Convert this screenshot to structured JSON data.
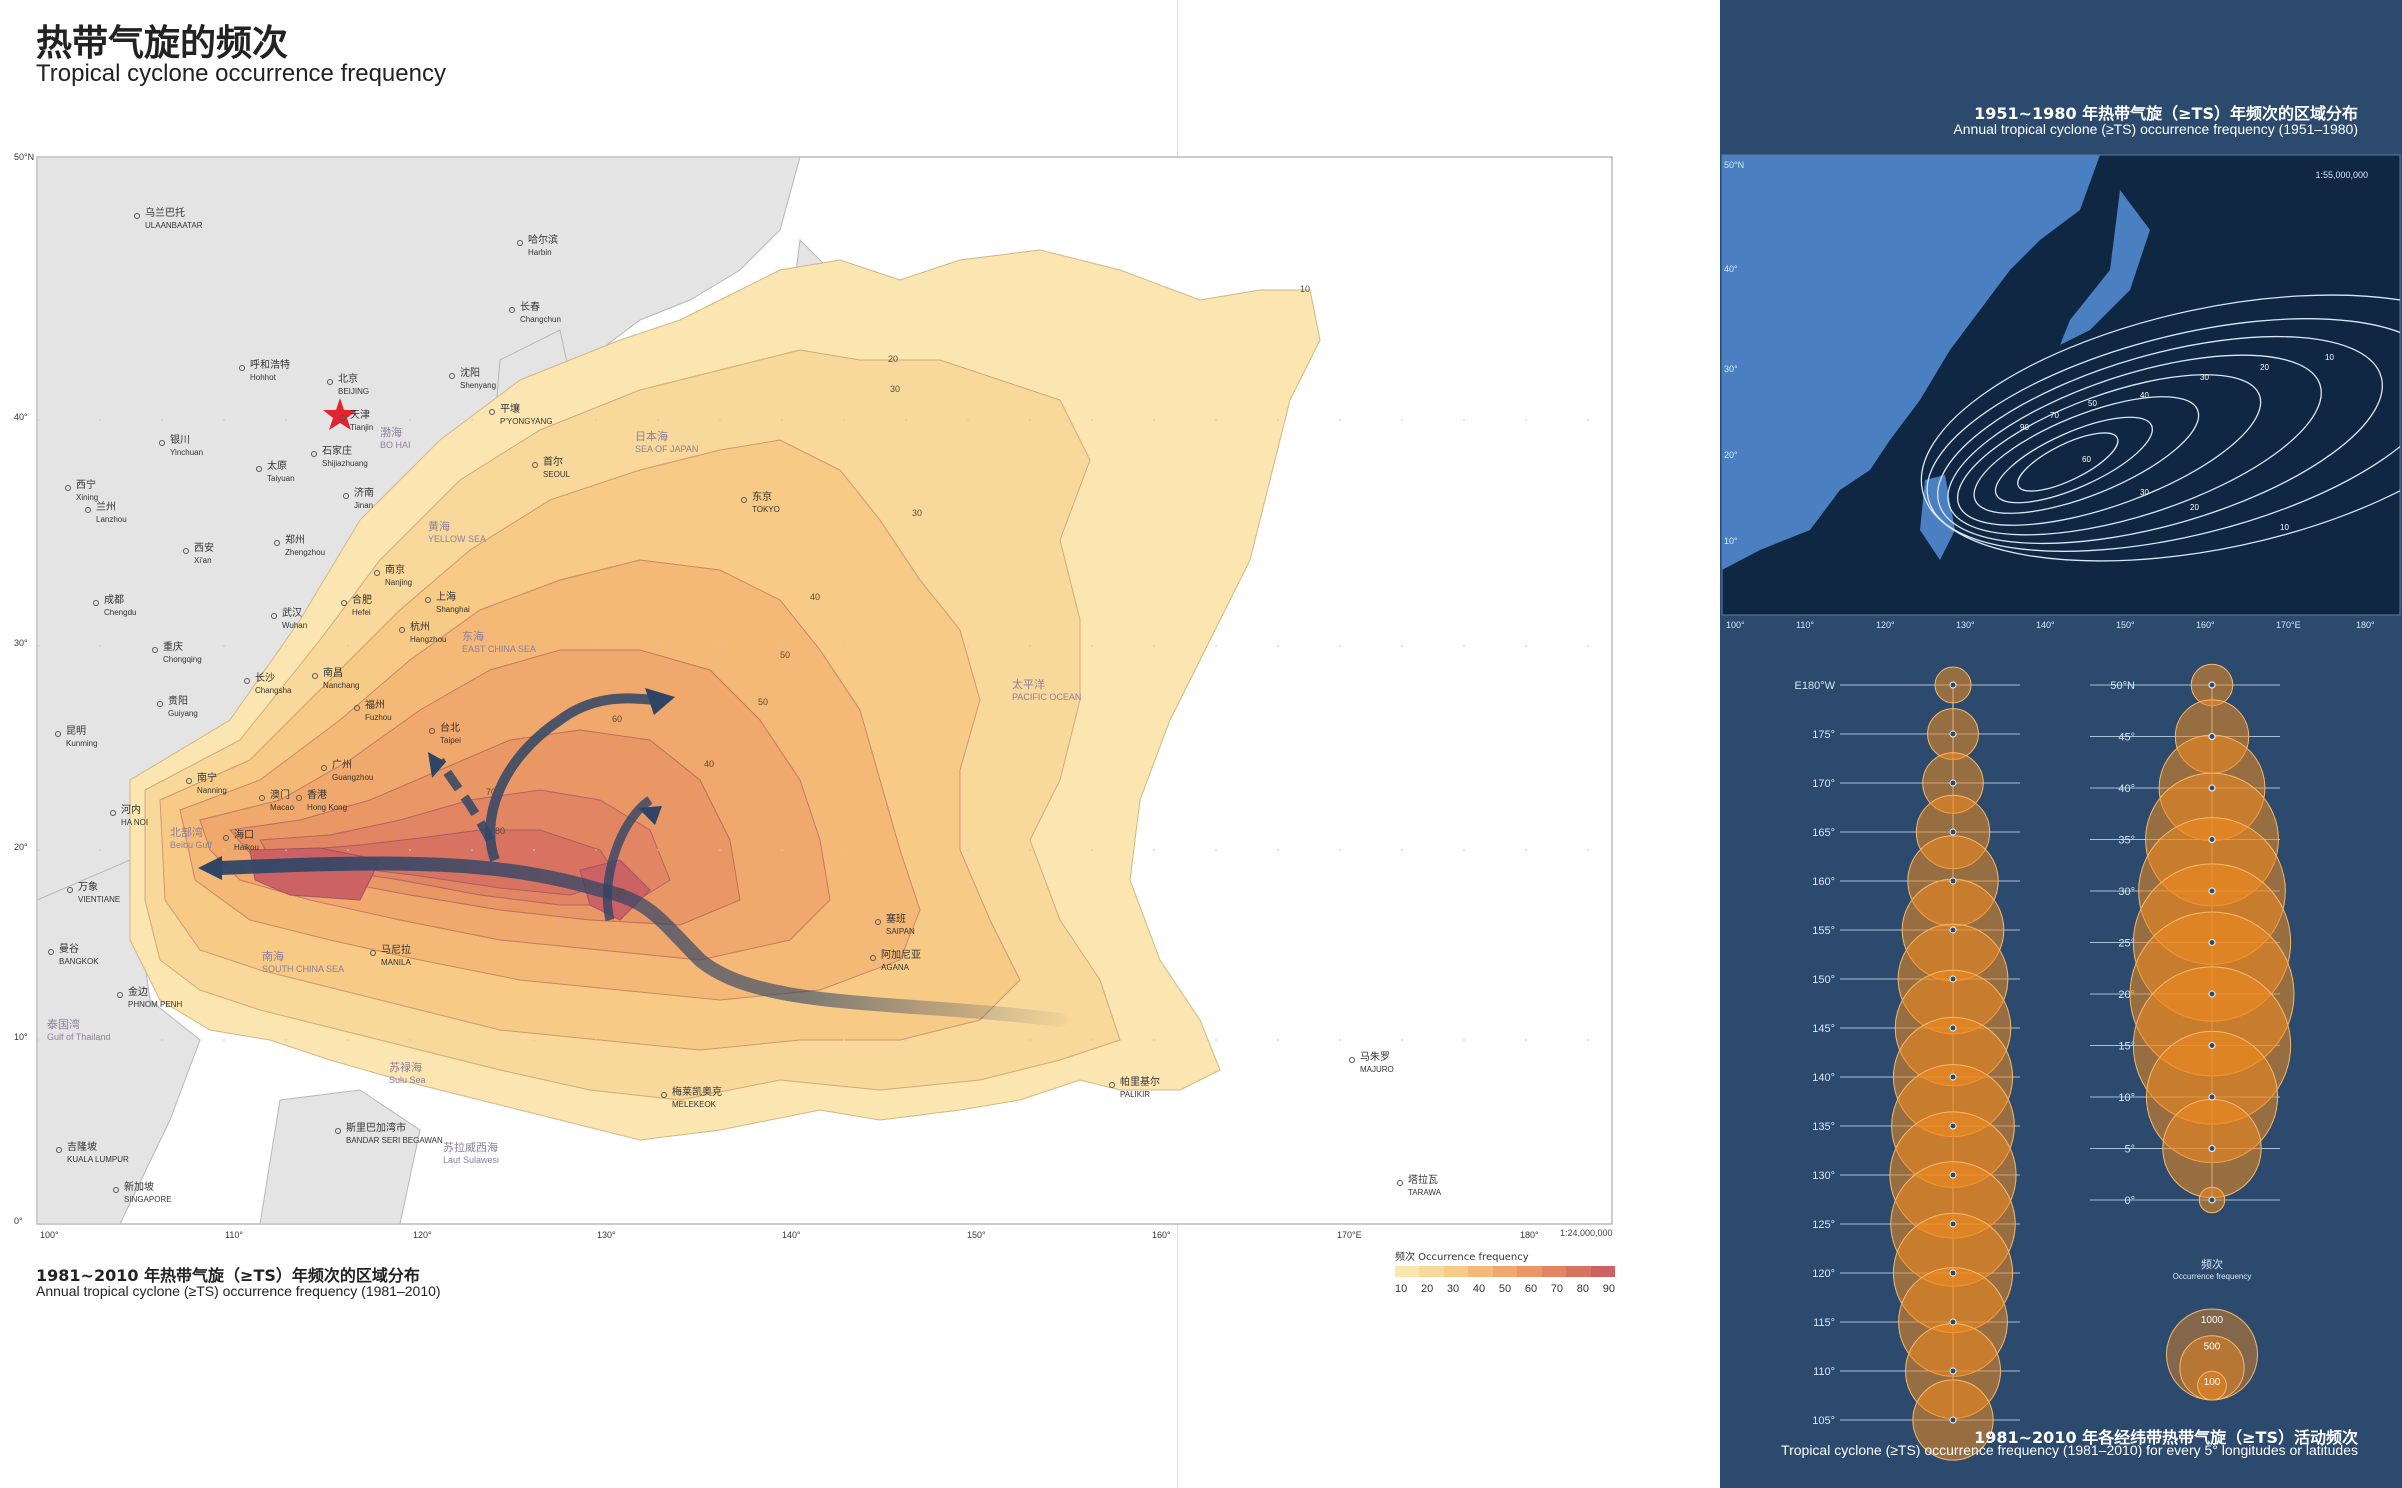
{
  "title": {
    "cn": "热带气旋的频次",
    "en": "Tropical cyclone occurrence frequency"
  },
  "main_map": {
    "caption_cn": "1981~2010 年热带气旋（≥TS）年频次的区域分布",
    "caption_en": "Annual tropical cyclone (≥TS) occurrence frequency (1981–2010)",
    "scale": "1:24,000,000",
    "lat_labels": [
      "50°N",
      "40°",
      "30°",
      "20°",
      "10°",
      "0°"
    ],
    "lon_labels": [
      "100°",
      "110°",
      "120°",
      "130°",
      "140°",
      "150°",
      "160°",
      "170°E",
      "180°"
    ],
    "contour_labels": [
      "10",
      "20",
      "30",
      "30",
      "40",
      "50",
      "50",
      "40",
      "60",
      "70",
      "80",
      "90"
    ],
    "places": [
      {
        "cn": "乌兰巴托",
        "en": "ULAANBAATAR"
      },
      {
        "cn": "哈尔滨",
        "en": "Harbin"
      },
      {
        "cn": "长春",
        "en": "Changchun"
      },
      {
        "cn": "呼和浩特",
        "en": "Hohhot"
      },
      {
        "cn": "北京",
        "en": "BEIJING"
      },
      {
        "cn": "沈阳",
        "en": "Shenyang"
      },
      {
        "cn": "天津",
        "en": "Tianjin"
      },
      {
        "cn": "平壤",
        "en": "P'YONGYANG"
      },
      {
        "cn": "银川",
        "en": "Yinchuan"
      },
      {
        "cn": "石家庄",
        "en": "Shijiazhuang"
      },
      {
        "cn": "太原",
        "en": "Taiyuan"
      },
      {
        "cn": "首尔",
        "en": "SEOUL"
      },
      {
        "cn": "西宁",
        "en": "Xining"
      },
      {
        "cn": "济南",
        "en": "Jinan"
      },
      {
        "cn": "兰州",
        "en": "Lanzhou"
      },
      {
        "cn": "东京",
        "en": "TOKYO"
      },
      {
        "cn": "郑州",
        "en": "Zhengzhou"
      },
      {
        "cn": "西安",
        "en": "Xi'an"
      },
      {
        "cn": "南京",
        "en": "Nanjing"
      },
      {
        "cn": "合肥",
        "en": "Hefei"
      },
      {
        "cn": "上海",
        "en": "Shanghai"
      },
      {
        "cn": "成都",
        "en": "Chengdu"
      },
      {
        "cn": "武汉",
        "en": "Wuhan"
      },
      {
        "cn": "杭州",
        "en": "Hangzhou"
      },
      {
        "cn": "重庆",
        "en": "Chongqing"
      },
      {
        "cn": "长沙",
        "en": "Changsha"
      },
      {
        "cn": "南昌",
        "en": "Nanchang"
      },
      {
        "cn": "贵阳",
        "en": "Guiyang"
      },
      {
        "cn": "福州",
        "en": "Fuzhou"
      },
      {
        "cn": "昆明",
        "en": "Kunming"
      },
      {
        "cn": "台北",
        "en": "Taipei"
      },
      {
        "cn": "南宁",
        "en": "Nanning"
      },
      {
        "cn": "广州",
        "en": "Guangzhou"
      },
      {
        "cn": "澳门",
        "en": "Macao"
      },
      {
        "cn": "香港",
        "en": "Hong Kong"
      },
      {
        "cn": "河内",
        "en": "HA NOI"
      },
      {
        "cn": "海口",
        "en": "Haikou"
      },
      {
        "cn": "万象",
        "en": "VIENTIANE"
      },
      {
        "cn": "塞班",
        "en": "SAIPAN"
      },
      {
        "cn": "阿加尼亚",
        "en": "AGANA"
      },
      {
        "cn": "曼谷",
        "en": "BANGKOK"
      },
      {
        "cn": "马尼拉",
        "en": "MANILA"
      },
      {
        "cn": "金边",
        "en": "PHNOM PENH"
      },
      {
        "cn": "马朱罗",
        "en": "MAJURO"
      },
      {
        "cn": "帕里基尔",
        "en": "PALIKIR"
      },
      {
        "cn": "梅莱凯奥克",
        "en": "MELEKEOK"
      },
      {
        "cn": "斯里巴加湾市",
        "en": "BANDAR SERI BEGAWAN"
      },
      {
        "cn": "吉隆坡",
        "en": "KUALA LUMPUR"
      },
      {
        "cn": "新加坡",
        "en": "SINGAPORE"
      },
      {
        "cn": "塔拉瓦",
        "en": "TARAWA"
      }
    ],
    "seas": [
      {
        "cn": "渤海",
        "en": "BO HAI"
      },
      {
        "cn": "日本海",
        "en": "SEA OF JAPAN"
      },
      {
        "cn": "黄海",
        "en": "YELLOW SEA"
      },
      {
        "cn": "东海",
        "en": "EAST CHINA SEA"
      },
      {
        "cn": "太平洋",
        "en": "PACIFIC OCEAN"
      },
      {
        "cn": "北部湾",
        "en": "Beibu Gulf"
      },
      {
        "cn": "南海",
        "en": "SOUTH CHINA SEA"
      },
      {
        "cn": "泰国湾",
        "en": "Gulf of Thailand"
      },
      {
        "cn": "苏禄海",
        "en": "Sulu Sea"
      },
      {
        "cn": "苏拉威西海",
        "en": "Laut Sulawesi"
      }
    ],
    "legend": {
      "title": "频次 Occurrence frequency",
      "ticks": [
        "10",
        "20",
        "30",
        "40",
        "50",
        "60",
        "70",
        "80",
        "90"
      ],
      "colors": [
        "#fbe6b2",
        "#f9d99b",
        "#f7ca86",
        "#f4b976",
        "#f0a86c",
        "#ea9766",
        "#e28563",
        "#d87362",
        "#cc6264"
      ]
    }
  },
  "inset_map": {
    "title_cn": "1951~1980 年热带气旋（≥TS）年频次的区域分布",
    "title_en": "Annual tropical cyclone (≥TS) occurrence frequency (1951–1980)",
    "scale": "1:55,000,000",
    "lat_labels": [
      "50°N",
      "40°",
      "30°",
      "20°",
      "10°"
    ],
    "lon_labels": [
      "100°",
      "110°",
      "120°",
      "130°",
      "140°",
      "150°",
      "160°",
      "170°E",
      "180°"
    ],
    "contour_labels": [
      "10",
      "20",
      "30",
      "40",
      "50",
      "70",
      "90",
      "60",
      "30",
      "20",
      "10"
    ]
  },
  "chart_data": [
    {
      "type": "bubble",
      "title": "1981~2010 年各经纬带热带气旋（≥TS）活动频次",
      "subtitle": "Tropical cyclone (≥TS) occurrence frequency (1981–2010) for every 5° longitudes or latitudes",
      "axis": "longitude",
      "categories": [
        "E180°W",
        "175°",
        "170°",
        "165°",
        "160°",
        "155°",
        "150°",
        "145°",
        "140°",
        "135°",
        "130°",
        "125°",
        "120°",
        "115°",
        "110°",
        "105°"
      ],
      "values": [
        60,
        120,
        170,
        250,
        380,
        480,
        560,
        620,
        660,
        700,
        740,
        720,
        660,
        550,
        420,
        300
      ]
    },
    {
      "type": "bubble",
      "axis": "latitude",
      "categories": [
        "50°N",
        "45°",
        "40°",
        "35°",
        "30°",
        "25°",
        "20°",
        "15°",
        "10°",
        "5°",
        "0°"
      ],
      "values": [
        80,
        250,
        520,
        820,
        1000,
        1150,
        1250,
        1150,
        800,
        450,
        30
      ]
    },
    {
      "type": "legend",
      "title": "频次 Occurrence frequency",
      "labels": [
        "1000",
        "500",
        "100"
      ],
      "values": [
        1000,
        500,
        100
      ]
    }
  ]
}
